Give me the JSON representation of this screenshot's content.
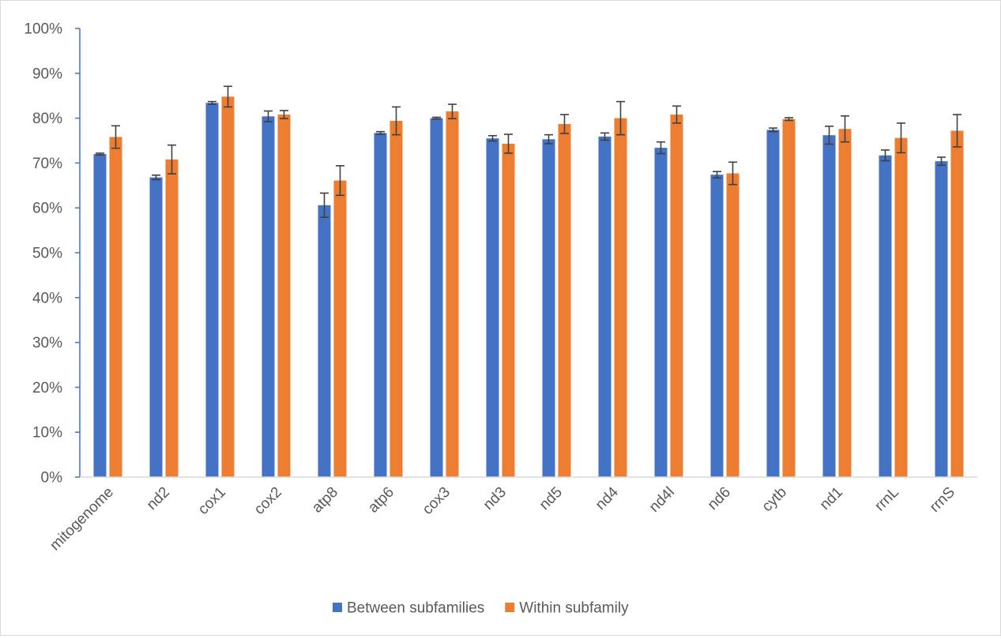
{
  "chart_data": {
    "type": "bar",
    "categories": [
      "mitogenome",
      "nd2",
      "cox1",
      "cox2",
      "atp8",
      "atp6",
      "cox3",
      "nd3",
      "nd5",
      "nd4",
      "nd4l",
      "nd6",
      "cytb",
      "nd1",
      "rrnL",
      "rrnS"
    ],
    "series": [
      {
        "name": "Between subfamilies",
        "color": "#4472C4",
        "values": [
          72.0,
          66.8,
          83.4,
          80.4,
          60.6,
          76.7,
          80.0,
          75.5,
          75.3,
          75.9,
          73.4,
          67.4,
          77.4,
          76.2,
          71.7,
          70.4
        ],
        "errors": [
          0.2,
          0.5,
          0.3,
          1.2,
          2.7,
          0.3,
          0.2,
          0.6,
          1.0,
          0.8,
          1.3,
          0.7,
          0.4,
          2.0,
          1.2,
          0.9
        ]
      },
      {
        "name": "Within subfamily",
        "color": "#ED7D31",
        "values": [
          75.8,
          70.8,
          84.8,
          80.8,
          66.1,
          79.4,
          81.5,
          74.3,
          78.7,
          80.0,
          80.8,
          67.7,
          79.8,
          77.6,
          75.6,
          77.2
        ],
        "errors": [
          2.5,
          3.2,
          2.3,
          0.9,
          3.3,
          3.1,
          1.6,
          2.1,
          2.1,
          3.7,
          1.9,
          2.5,
          0.3,
          2.9,
          3.3,
          3.6
        ]
      }
    ],
    "y_ticks": [
      "0%",
      "10%",
      "20%",
      "30%",
      "40%",
      "50%",
      "60%",
      "70%",
      "80%",
      "90%",
      "100%"
    ],
    "ylim": [
      0,
      100
    ],
    "title": "",
    "xlabel": "",
    "ylabel": "",
    "grid": false,
    "legend": "bottom-center",
    "x_tick_rotation": -45
  }
}
